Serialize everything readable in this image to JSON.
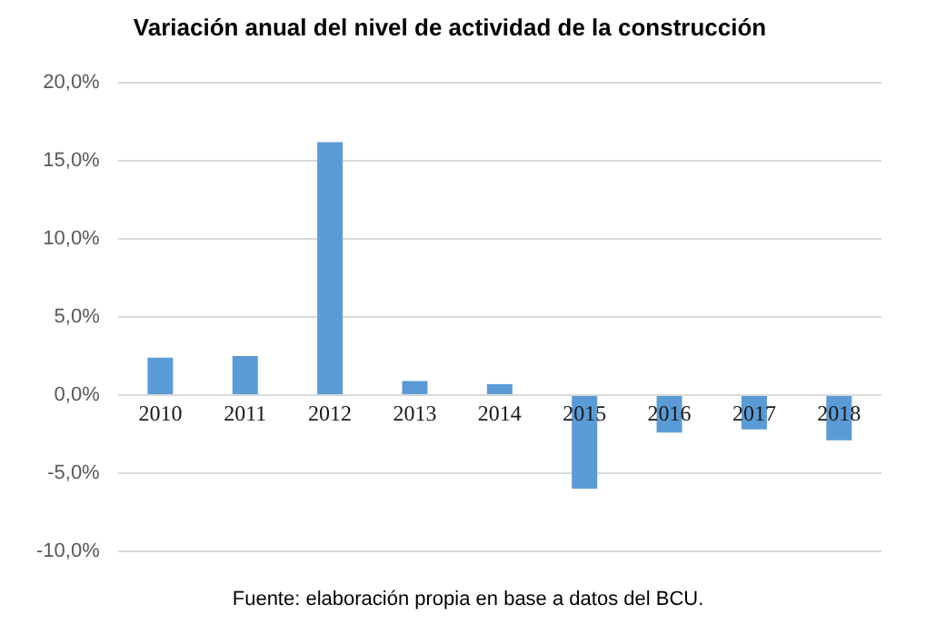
{
  "chart_data": {
    "type": "bar",
    "title": "Variación anual del nivel de actividad de la construcción",
    "categories": [
      "2010",
      "2011",
      "2012",
      "2013",
      "2014",
      "2015",
      "2016",
      "2017",
      "2018"
    ],
    "values": [
      2.4,
      2.5,
      16.2,
      0.9,
      0.7,
      -6.0,
      -2.4,
      -2.2,
      -2.9
    ],
    "color": "#5b9bd5",
    "ylim": [
      -10,
      20
    ],
    "yticks": [
      {
        "value": -10,
        "label": "-10,0%"
      },
      {
        "value": -5,
        "label": "-5,0%"
      },
      {
        "value": 0,
        "label": "0,0%"
      },
      {
        "value": 5,
        "label": "5,0%"
      },
      {
        "value": 10,
        "label": "10,0%"
      },
      {
        "value": 15,
        "label": "15,0%"
      },
      {
        "value": 20,
        "label": "20,0%"
      }
    ],
    "grid": "y",
    "annotations": [
      "Fuente: elaboración propia en base a datos del BCU."
    ]
  }
}
